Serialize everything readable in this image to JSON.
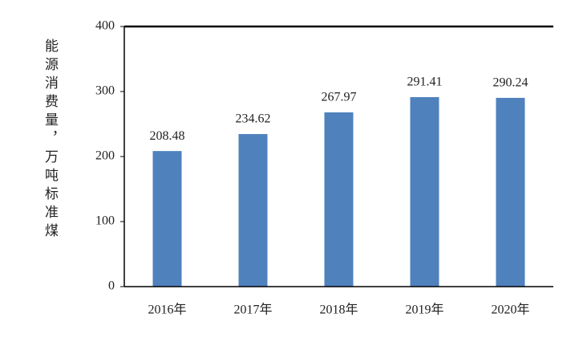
{
  "chart_data": {
    "type": "bar",
    "y_label": "能源消费量，万吨标准煤",
    "categories": [
      "2016年",
      "2017年",
      "2018年",
      "2019年",
      "2020年"
    ],
    "values": [
      208.48,
      234.62,
      267.97,
      291.41,
      290.24
    ],
    "color": "#4f81bd",
    "ylim": [
      0,
      400
    ],
    "yticks": [
      0,
      100,
      200,
      300,
      400
    ]
  }
}
